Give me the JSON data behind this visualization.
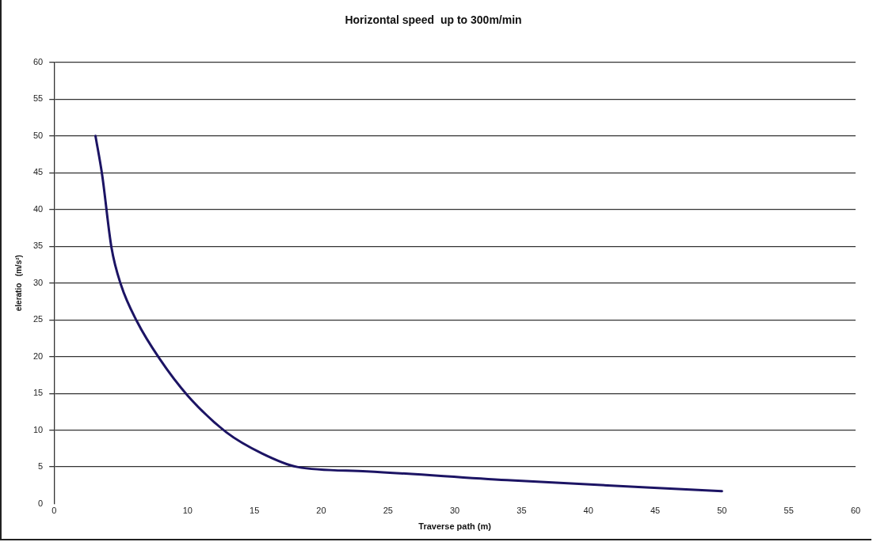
{
  "chart_data": {
    "type": "line",
    "title": "Horizontal speed  up to 300m/min",
    "xlabel": "Traverse path (m)",
    "ylabel": "eleratio   (m/s²)",
    "series": [
      {
        "color": "#1c1464",
        "x": [
          3.1,
          3.6,
          4.3,
          5.0,
          6.2,
          7.9,
          10,
          12.9,
          15.6,
          18.2,
          23.4,
          33.9,
          50
        ],
        "values": [
          50,
          44.7,
          34.8,
          29.8,
          24.8,
          19.7,
          14.7,
          9.7,
          6.8,
          5.0,
          4.4,
          3.2,
          1.7
        ]
      }
    ],
    "xlim": [
      0,
      60
    ],
    "xticks": [
      0,
      10,
      15,
      20,
      25,
      30,
      35,
      40,
      45,
      50,
      55,
      60
    ],
    "ylim": [
      0,
      60
    ],
    "yticks": [
      0,
      5,
      10,
      15,
      20,
      25,
      30,
      35,
      40,
      45,
      50,
      55,
      60
    ],
    "grid": "y",
    "legend": false,
    "marker": "none",
    "line_style": "solid"
  }
}
